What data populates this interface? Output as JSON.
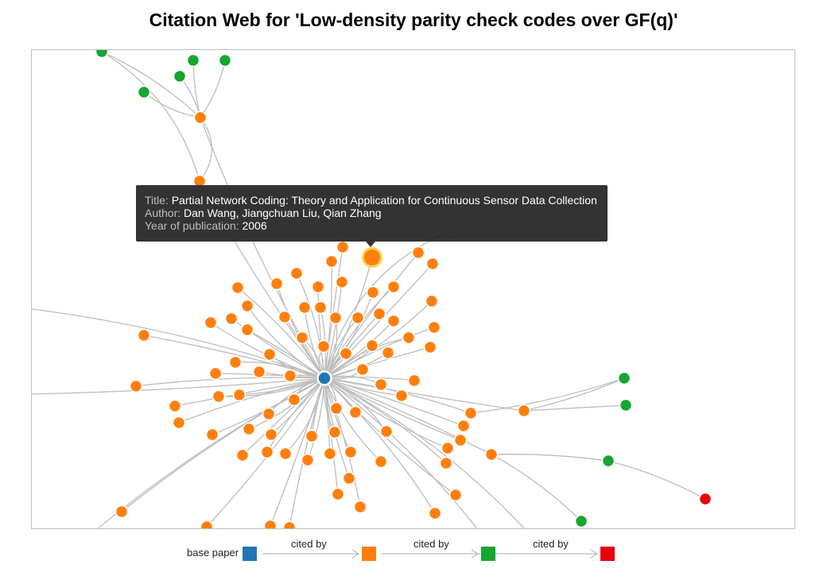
{
  "title": "Citation Web for 'Low-density parity check codes over GF(q)'",
  "colors": {
    "base": "#1f77b4",
    "level1": "#ff7f0e",
    "level2": "#17a631",
    "level3": "#e8000b",
    "edge": "#bdbdbd",
    "highlight": "#ffd24d"
  },
  "tooltip": {
    "title_key": "Title:",
    "title_value": "Partial Network Coding: Theory and Application for Continuous Sensor Data Collection",
    "author_key": "Author:",
    "author_value": "Dan Wang, Jiangchuan Liu, Qian Zhang",
    "year_key": "Year of publication:",
    "year_value": "2006"
  },
  "legend": {
    "base_label": "base paper",
    "cited_by_1": "cited by",
    "cited_by_2": "cited by",
    "cited_by_3": "cited by"
  }
}
